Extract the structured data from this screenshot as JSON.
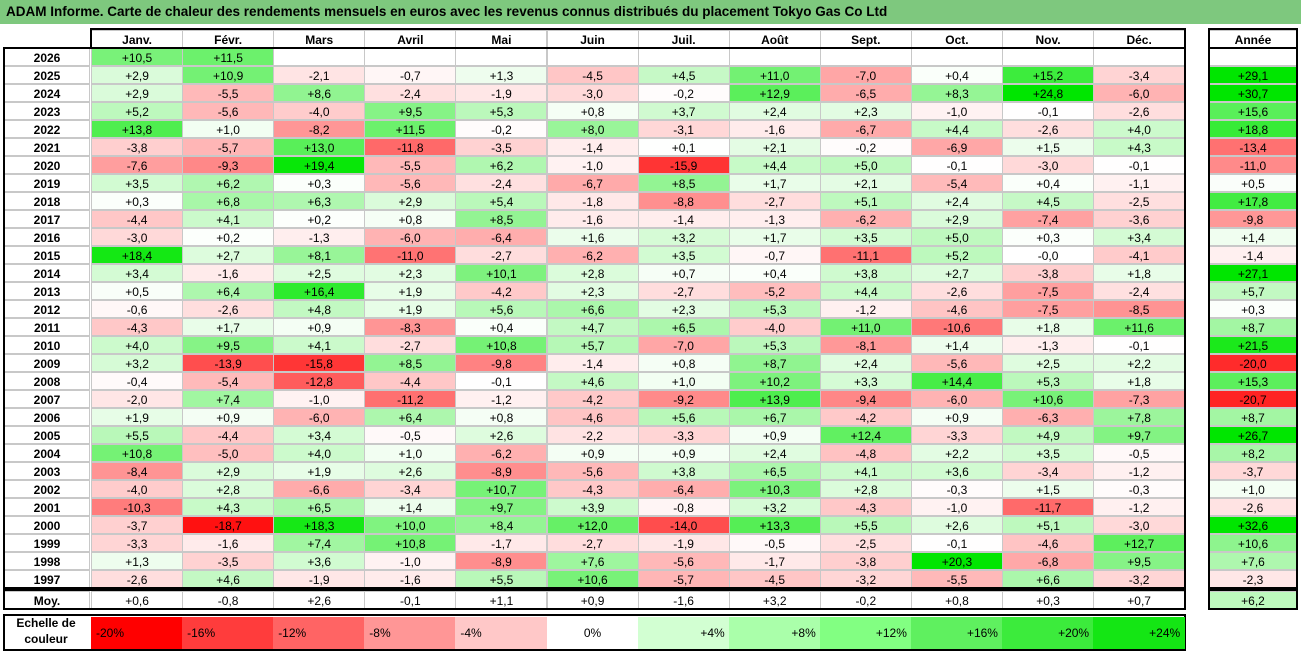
{
  "title": "ADAM Informe. Carte de chaleur des rendements mensuels en euros avec les revenus connus distribués du placement Tokyo Gas Co Ltd",
  "chart_data": {
    "type": "heatmap",
    "month_headers": [
      "Janv.",
      "Févr.",
      "Mars",
      "Avril",
      "Mai",
      "Juin",
      "Juil.",
      "Août",
      "Sept.",
      "Oct.",
      "Nov.",
      "Déc."
    ],
    "year_header": "Année",
    "rows": [
      {
        "year": "2026",
        "months": [
          "+10,5",
          "+11,5",
          "",
          "",
          "",
          "",
          "",
          "",
          "",
          "",
          "",
          ""
        ],
        "annual": ""
      },
      {
        "year": "2025",
        "months": [
          "+2,9",
          "+10,9",
          "-2,1",
          "-0,7",
          "+1,3",
          "-4,5",
          "+4,5",
          "+11,0",
          "-7,0",
          "+0,4",
          "+15,2",
          "-3,4"
        ],
        "annual": "+29,1"
      },
      {
        "year": "2024",
        "months": [
          "+2,9",
          "-5,5",
          "+8,6",
          "-2,4",
          "-1,9",
          "-3,0",
          "-0,2",
          "+12,9",
          "-6,5",
          "+8,3",
          "+24,8",
          "-6,0"
        ],
        "annual": "+30,7"
      },
      {
        "year": "2023",
        "months": [
          "+5,2",
          "-5,6",
          "-4,0",
          "+9,5",
          "+5,3",
          "+0,8",
          "+3,7",
          "+2,4",
          "+2,3",
          "-1,0",
          "-0,1",
          "-2,6"
        ],
        "annual": "+15,6"
      },
      {
        "year": "2022",
        "months": [
          "+13,8",
          "+1,0",
          "-8,2",
          "+11,5",
          "-0,2",
          "+8,0",
          "-3,1",
          "-1,6",
          "-6,7",
          "+4,4",
          "-2,6",
          "+4,0"
        ],
        "annual": "+18,8"
      },
      {
        "year": "2021",
        "months": [
          "-3,8",
          "-5,7",
          "+13,0",
          "-11,8",
          "-3,5",
          "-1,4",
          "+0,1",
          "+2,1",
          "-0,2",
          "-6,9",
          "+1,5",
          "+4,3"
        ],
        "annual": "-13,4"
      },
      {
        "year": "2020",
        "months": [
          "-7,6",
          "-9,3",
          "+19,4",
          "-5,5",
          "+6,2",
          "-1,0",
          "-15,9",
          "+4,4",
          "+5,0",
          "-0,1",
          "-3,0",
          "-0,1"
        ],
        "annual": "-11,0"
      },
      {
        "year": "2019",
        "months": [
          "+3,5",
          "+6,2",
          "+0,3",
          "-5,6",
          "-2,4",
          "-6,7",
          "+8,5",
          "+1,7",
          "+2,1",
          "-5,4",
          "+0,4",
          "-1,1"
        ],
        "annual": "+0,5"
      },
      {
        "year": "2018",
        "months": [
          "+0,3",
          "+6,8",
          "+6,3",
          "+2,9",
          "+5,4",
          "-1,8",
          "-8,8",
          "-2,7",
          "+5,1",
          "+2,4",
          "+4,5",
          "-2,5"
        ],
        "annual": "+17,8"
      },
      {
        "year": "2017",
        "months": [
          "-4,4",
          "+4,1",
          "+0,2",
          "+0,8",
          "+8,5",
          "-1,6",
          "-1,4",
          "-1,3",
          "-6,2",
          "+2,9",
          "-7,4",
          "-3,6"
        ],
        "annual": "-9,8"
      },
      {
        "year": "2016",
        "months": [
          "-3,0",
          "+0,2",
          "-1,3",
          "-6,0",
          "-6,4",
          "+1,6",
          "+3,2",
          "+1,7",
          "+3,5",
          "+5,0",
          "+0,3",
          "+3,4"
        ],
        "annual": "+1,4"
      },
      {
        "year": "2015",
        "months": [
          "+18,4",
          "+2,7",
          "+8,1",
          "-11,0",
          "-2,7",
          "-6,2",
          "+3,5",
          "-0,7",
          "-11,1",
          "+5,2",
          "-0,0",
          "-4,1"
        ],
        "annual": "-1,4"
      },
      {
        "year": "2014",
        "months": [
          "+3,4",
          "-1,6",
          "+2,5",
          "+2,3",
          "+10,1",
          "+2,8",
          "+0,7",
          "+0,4",
          "+3,8",
          "+2,7",
          "-3,8",
          "+1,8"
        ],
        "annual": "+27,1"
      },
      {
        "year": "2013",
        "months": [
          "+0,5",
          "+6,4",
          "+16,4",
          "+1,9",
          "-4,2",
          "+2,3",
          "-2,7",
          "-5,2",
          "+4,4",
          "-2,6",
          "-7,5",
          "-2,4"
        ],
        "annual": "+5,7"
      },
      {
        "year": "2012",
        "months": [
          "-0,6",
          "-2,6",
          "+4,8",
          "+1,9",
          "+5,6",
          "+6,6",
          "+2,3",
          "+5,3",
          "-1,2",
          "-4,6",
          "-7,5",
          "-8,5"
        ],
        "annual": "+0,3"
      },
      {
        "year": "2011",
        "months": [
          "-4,3",
          "+1,7",
          "+0,9",
          "-8,3",
          "+0,4",
          "+4,7",
          "+6,5",
          "-4,0",
          "+11,0",
          "-10,6",
          "+1,8",
          "+11,6"
        ],
        "annual": "+8,7"
      },
      {
        "year": "2010",
        "months": [
          "+4,0",
          "+9,5",
          "+4,1",
          "-2,7",
          "+10,8",
          "+5,7",
          "-7,0",
          "+5,3",
          "-8,1",
          "+1,4",
          "-1,3",
          "-0,1"
        ],
        "annual": "+21,5"
      },
      {
        "year": "2009",
        "months": [
          "+3,2",
          "-13,9",
          "-15,8",
          "+8,5",
          "-9,8",
          "-1,4",
          "+0,8",
          "+8,7",
          "+2,4",
          "-5,6",
          "+2,5",
          "+2,2"
        ],
        "annual": "-20,0"
      },
      {
        "year": "2008",
        "months": [
          "-0,4",
          "-5,4",
          "-12,8",
          "-4,4",
          "-0,1",
          "+4,6",
          "+1,0",
          "+10,2",
          "+3,3",
          "+14,4",
          "+5,3",
          "+1,8"
        ],
        "annual": "+15,3"
      },
      {
        "year": "2007",
        "months": [
          "-2,0",
          "+7,4",
          "-1,0",
          "-11,2",
          "-1,2",
          "-4,2",
          "-9,2",
          "+13,9",
          "-9,4",
          "-6,0",
          "+10,6",
          "-7,3"
        ],
        "annual": "-20,7"
      },
      {
        "year": "2006",
        "months": [
          "+1,9",
          "+0,9",
          "-6,0",
          "+6,4",
          "+0,8",
          "-4,6",
          "+5,6",
          "+6,7",
          "-4,2",
          "+0,9",
          "-6,3",
          "+7,8"
        ],
        "annual": "+8,7"
      },
      {
        "year": "2005",
        "months": [
          "+5,5",
          "-4,4",
          "+3,4",
          "-0,5",
          "+2,6",
          "-2,2",
          "-3,3",
          "+0,9",
          "+12,4",
          "-3,3",
          "+4,9",
          "+9,7"
        ],
        "annual": "+26,7"
      },
      {
        "year": "2004",
        "months": [
          "+10,8",
          "-5,0",
          "+4,0",
          "+1,0",
          "-6,2",
          "+0,9",
          "+0,9",
          "+2,4",
          "-4,8",
          "+2,2",
          "+3,5",
          "-0,5"
        ],
        "annual": "+8,2"
      },
      {
        "year": "2003",
        "months": [
          "-8,4",
          "+2,9",
          "+1,9",
          "+2,6",
          "-8,9",
          "-5,6",
          "+3,8",
          "+6,5",
          "+4,1",
          "+3,6",
          "-3,4",
          "-1,2"
        ],
        "annual": "-3,7"
      },
      {
        "year": "2002",
        "months": [
          "-4,0",
          "+2,8",
          "-6,6",
          "-3,4",
          "+10,7",
          "-4,3",
          "-6,4",
          "+10,3",
          "+2,8",
          "-0,3",
          "+1,5",
          "-0,3"
        ],
        "annual": "+1,0"
      },
      {
        "year": "2001",
        "months": [
          "-10,3",
          "+4,3",
          "+6,5",
          "+1,4",
          "+9,7",
          "+3,9",
          "-0,8",
          "+3,2",
          "-4,3",
          "-1,0",
          "-11,7",
          "-1,2"
        ],
        "annual": "-2,6"
      },
      {
        "year": "2000",
        "months": [
          "-3,7",
          "-18,7",
          "+18,3",
          "+10,0",
          "+8,4",
          "+12,0",
          "-14,0",
          "+13,3",
          "+5,5",
          "+2,6",
          "+5,1",
          "-3,0"
        ],
        "annual": "+32,6"
      },
      {
        "year": "1999",
        "months": [
          "-3,3",
          "-1,6",
          "+7,4",
          "+10,8",
          "-1,7",
          "-2,7",
          "-1,9",
          "-0,5",
          "-2,5",
          "-0,1",
          "-4,6",
          "+12,7"
        ],
        "annual": "+10,6"
      },
      {
        "year": "1998",
        "months": [
          "+1,3",
          "-3,5",
          "+3,6",
          "-1,0",
          "-8,9",
          "+7,6",
          "-5,6",
          "-1,7",
          "-3,8",
          "+20,3",
          "-6,8",
          "+9,5"
        ],
        "annual": "+7,6"
      },
      {
        "year": "1997",
        "months": [
          "-2,6",
          "+4,6",
          "-1,9",
          "-1,6",
          "+5,5",
          "+10,6",
          "-5,7",
          "-4,5",
          "-3,2",
          "-5,5",
          "+6,6",
          "-3,2"
        ],
        "annual": "-2,3"
      }
    ],
    "average": {
      "label": "Moy.",
      "months": [
        "+0,6",
        "-0,8",
        "+2,6",
        "-0,1",
        "+1,1",
        "+0,9",
        "-1,6",
        "+3,2",
        "-0,2",
        "+0,8",
        "+0,3",
        "+0,7"
      ],
      "annual": "+6,2"
    },
    "color_scale": {
      "label_line1": "Echelle de",
      "label_line2": "couleur",
      "stops": [
        {
          "label": "-20%",
          "value": -20,
          "color": "#ff0000"
        },
        {
          "label": "-16%",
          "value": -16,
          "color": "#ff3c3c"
        },
        {
          "label": "-12%",
          "value": -12,
          "color": "#ff6464"
        },
        {
          "label": "-8%",
          "value": -8,
          "color": "#ff9696"
        },
        {
          "label": "-4%",
          "value": -4,
          "color": "#ffc8c8"
        },
        {
          "label": "0%",
          "value": 0,
          "color": "#ffffff"
        },
        {
          "label": "+4%",
          "value": 4,
          "color": "#d2ffd2"
        },
        {
          "label": "+8%",
          "value": 8,
          "color": "#aaffaa"
        },
        {
          "label": "+12%",
          "value": 12,
          "color": "#82ff82"
        },
        {
          "label": "+16%",
          "value": 16,
          "color": "#5ff05f"
        },
        {
          "label": "+20%",
          "value": 20,
          "color": "#3ceb3c"
        },
        {
          "label": "+24%",
          "value": 24,
          "color": "#14e614"
        }
      ]
    },
    "colors": {
      "title_bar": "#7ec87e",
      "grid": "#c8c8c8",
      "negative_max": "#ff0000",
      "positive_max": "#00e600"
    }
  }
}
